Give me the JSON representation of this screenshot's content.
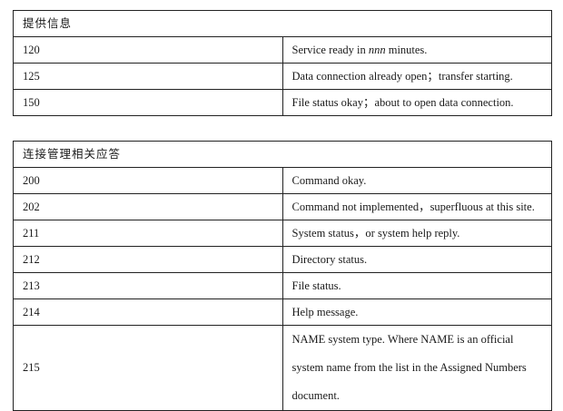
{
  "tables": [
    {
      "title": "提供信息",
      "rows": [
        {
          "code": "120",
          "desc_before": "Service ready in ",
          "desc_em": "nnn",
          "desc_after": " minutes."
        },
        {
          "code": "125",
          "desc": "Data connection already open；transfer starting."
        },
        {
          "code": "150",
          "desc": "File status okay；about to open data connection."
        }
      ]
    },
    {
      "title": "连接管理相关应答",
      "rows": [
        {
          "code": "200",
          "desc": "Command okay."
        },
        {
          "code": "202",
          "desc": "Command not implemented，superfluous at this site."
        },
        {
          "code": "211",
          "desc": "System status，or system help reply."
        },
        {
          "code": "212",
          "desc": "Directory status."
        },
        {
          "code": "213",
          "desc": "File status."
        },
        {
          "code": "214",
          "desc": "Help message."
        },
        {
          "code": "215",
          "desc": "NAME system type. Where NAME is an official system name from the list in the Assigned Numbers document."
        }
      ]
    }
  ]
}
